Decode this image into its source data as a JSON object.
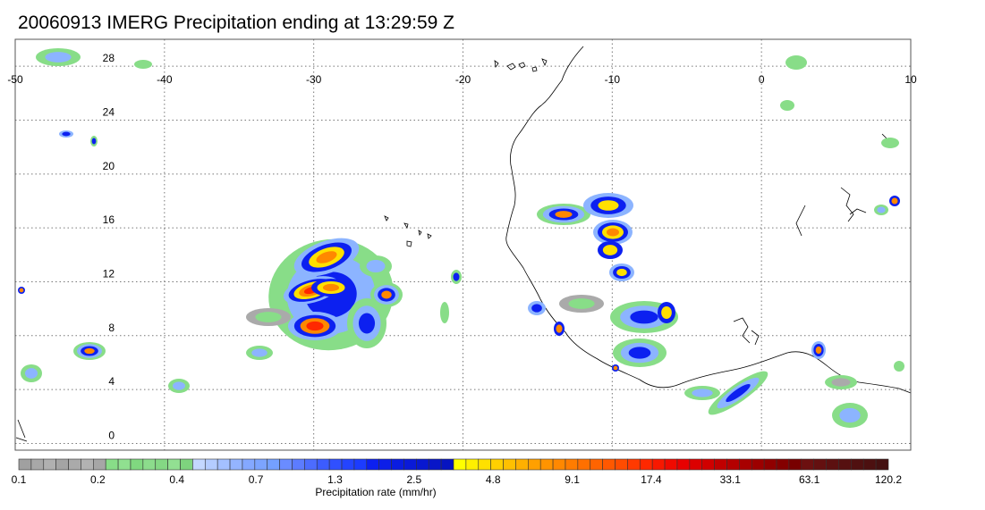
{
  "title": "20060913 IMERG Precipitation ending at 13:29:59 Z",
  "map": {
    "lon_ticks": [
      "-50",
      "-40",
      "-30",
      "-20",
      "-10",
      "0",
      "10"
    ],
    "lat_ticks": [
      "28",
      "24",
      "20",
      "16",
      "12",
      "8",
      "4",
      "0"
    ],
    "lon_values": [
      -50,
      -40,
      -30,
      -20,
      -10,
      0,
      10
    ],
    "lat_values": [
      28,
      24,
      20,
      16,
      12,
      8,
      4,
      0
    ],
    "lon_range": [
      -50,
      10
    ],
    "lat_range": [
      -0.5,
      30
    ],
    "grid": "dotted"
  },
  "colorbar": {
    "label": "Precipitation rate (mm/hr)",
    "tick_labels": [
      "0.1",
      "0.2",
      "0.4",
      "0.7",
      "1.3",
      "2.5",
      "4.8",
      "9.1",
      "17.4",
      "33.1",
      "63.1",
      "120.2"
    ],
    "colors": [
      "#a0a0a0",
      "#a8a8a8",
      "#b0b0b0",
      "#a4a4a4",
      "#aaaaaa",
      "#b2b2b2",
      "#a6a6a6",
      "#88dd88",
      "#90e090",
      "#80d880",
      "#8cdc8c",
      "#84d884",
      "#92e092",
      "#7ed47e",
      "#c4d8ff",
      "#b4ccff",
      "#a4c0ff",
      "#94b4ff",
      "#84a8ff",
      "#7ca4ff",
      "#74a0ff",
      "#6a8cff",
      "#5c7cff",
      "#4c6cff",
      "#3c5cff",
      "#3050ff",
      "#2444ff",
      "#1c3cff",
      "#0c20f0",
      "#0c1ee8",
      "#0a1ce0",
      "#0a1ad8",
      "#0818d0",
      "#0816c8",
      "#0614c0",
      "#ffff00",
      "#fff000",
      "#ffe000",
      "#ffd000",
      "#ffc000",
      "#ffb000",
      "#ffa000",
      "#ff9400",
      "#ff8800",
      "#ff7c00",
      "#ff7000",
      "#ff6400",
      "#ff5800",
      "#ff4c00",
      "#ff3a00",
      "#ff2800",
      "#f81800",
      "#f00a00",
      "#e80000",
      "#dc0000",
      "#d00000",
      "#c00000",
      "#b40000",
      "#a80000",
      "#9c0000",
      "#900000",
      "#840000",
      "#780000",
      "#6c1010",
      "#641010",
      "#5c1010",
      "#561010",
      "#501010",
      "#4c1010",
      "#441010"
    ]
  },
  "precip_colors": {
    "light": "#88dd88",
    "gray": "#aaaaaa",
    "lightblue": "#8cb4ff",
    "blue": "#0c20f0",
    "yellow": "#ffe000",
    "orange": "#ff8800",
    "red": "#ff2800"
  }
}
